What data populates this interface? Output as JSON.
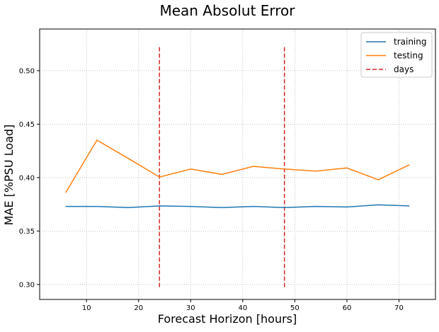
{
  "chart_data": {
    "type": "line",
    "title": "Mean Absolut Error",
    "xlabel": "Forecast Horizon [hours]",
    "ylabel": "MAE [%PSU Load]",
    "xlim": [
      1.0,
      77.0
    ],
    "ylim": [
      0.286,
      0.539
    ],
    "xticks": [
      10,
      20,
      30,
      40,
      50,
      60,
      70
    ],
    "yticks": [
      0.3,
      0.35,
      0.4,
      0.45,
      0.5
    ],
    "xtick_labels": [
      "10",
      "20",
      "30",
      "40",
      "50",
      "60",
      "70"
    ],
    "ytick_labels": [
      "0.30",
      "0.35",
      "0.40",
      "0.45",
      "0.50"
    ],
    "grid": true,
    "legend_position": "top-right",
    "x": [
      6,
      12,
      18,
      24,
      30,
      36,
      42,
      48,
      54,
      60,
      66,
      72
    ],
    "series": [
      {
        "name": "training",
        "color": "#1f77b4",
        "style": "solid",
        "values": [
          0.373,
          0.373,
          0.372,
          0.3735,
          0.373,
          0.372,
          0.373,
          0.372,
          0.373,
          0.3725,
          0.3745,
          0.3735
        ]
      },
      {
        "name": "testing",
        "color": "#ff7f0e",
        "style": "solid",
        "values": [
          0.386,
          0.435,
          0.418,
          0.4005,
          0.408,
          0.403,
          0.4105,
          0.408,
          0.406,
          0.409,
          0.398,
          0.412
        ]
      }
    ],
    "vlines": {
      "name": "days",
      "color": "#d62728",
      "style": "dashed",
      "x": [
        24,
        48
      ],
      "ymin": 0.297,
      "ymax": 0.522
    }
  }
}
